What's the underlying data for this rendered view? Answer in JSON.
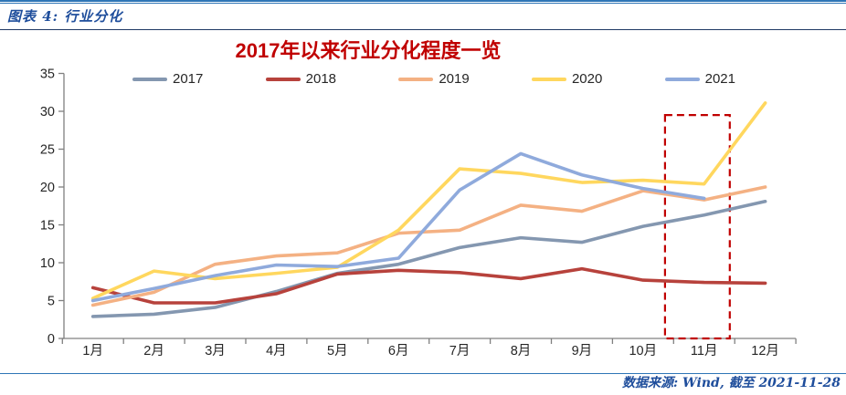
{
  "header": {
    "caption": "图表 4: 行业分化"
  },
  "footer": {
    "source": "数据来源: Wind, 截至 2021-11-28"
  },
  "colors": {
    "title_red": "#C00000",
    "header_footer_blue": "#1F4E9C",
    "rule_blue": "#2E75B6",
    "header_divider_navy": "#1F3864",
    "axis_gray": "#808080",
    "tick_label": "#262626",
    "highlight_red": "#C00000"
  },
  "chart_data": {
    "type": "line",
    "title": "2017年以来行业分化程度一览",
    "categories": [
      "1月",
      "2月",
      "3月",
      "4月",
      "5月",
      "6月",
      "7月",
      "8月",
      "9月",
      "10月",
      "11月",
      "12月"
    ],
    "series": [
      {
        "name": "2017",
        "color": "#8497B0",
        "values": [
          2.9,
          3.2,
          4.1,
          6.2,
          8.6,
          9.8,
          12.0,
          13.3,
          12.7,
          14.8,
          16.3,
          18.1
        ]
      },
      {
        "name": "2018",
        "color": "#B7423C",
        "values": [
          6.7,
          4.7,
          4.7,
          5.9,
          8.5,
          9.0,
          8.7,
          7.9,
          9.2,
          7.7,
          7.4,
          7.3
        ]
      },
      {
        "name": "2019",
        "color": "#F4B183",
        "values": [
          4.4,
          6.1,
          9.8,
          10.9,
          11.3,
          13.9,
          14.3,
          17.6,
          16.8,
          19.5,
          18.3,
          20.0
        ]
      },
      {
        "name": "2020",
        "color": "#FFD75E",
        "values": [
          5.3,
          8.9,
          7.9,
          8.6,
          9.4,
          14.3,
          22.4,
          21.8,
          20.6,
          20.9,
          20.4,
          31.1
        ]
      },
      {
        "name": "2021",
        "color": "#8FAADC",
        "values": [
          5.0,
          6.6,
          8.3,
          9.7,
          9.5,
          10.6,
          19.6,
          24.4,
          21.6,
          19.8,
          18.5,
          null
        ]
      }
    ],
    "xlabel": "",
    "ylabel": "",
    "ylim": [
      0,
      35
    ],
    "ytick_step": 5,
    "grid": false,
    "legend_position": "top",
    "annotation_note": "red dashed rectangle highlighting the 11月 column",
    "highlight": {
      "shape": "dashed-rect",
      "color": "#C00000",
      "cat_range": [
        9.36,
        10.42
      ],
      "value_range": [
        0,
        29.5
      ]
    }
  }
}
